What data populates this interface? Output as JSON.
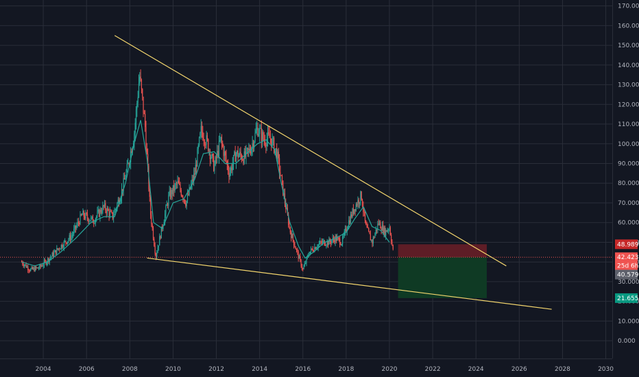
{
  "chart_data": {
    "type": "candlestick",
    "xlim": [
      2002.0,
      2030.3
    ],
    "ylim": [
      -9,
      173
    ],
    "x_ticks": [
      2004,
      2006,
      2008,
      2010,
      2012,
      2014,
      2016,
      2018,
      2020,
      2022,
      2024,
      2026,
      2028,
      2030
    ],
    "x_tick_labels": [
      "2004",
      "2006",
      "2008",
      "2010",
      "2012",
      "2014",
      "2016",
      "2018",
      "2020",
      "2022",
      "2024",
      "2026",
      "2028",
      "2030"
    ],
    "y_ticks": [
      0,
      10,
      20,
      30,
      40,
      50,
      60,
      70,
      80,
      90,
      100,
      110,
      120,
      130,
      140,
      150,
      160,
      170
    ],
    "y_tick_labels": [
      "0.000",
      "10.000",
      "20.000",
      "30.000",
      "40.000",
      "50.000",
      "60.000",
      "70.000",
      "80.000",
      "90.000",
      "100.000",
      "110.000",
      "120.000",
      "130.000",
      "140.000",
      "150.000",
      "160.000",
      "170.000"
    ],
    "grid": true,
    "colors": {
      "background": "#131722",
      "grid": "#2a2e39",
      "up": "#26a69a",
      "down": "#ef5350",
      "moving_average": "#26a69a",
      "trendline": "#f5d76e",
      "current_price_line": "#ef5350",
      "stop_zone": "#5e1d26",
      "target_zone": "#0f3a24"
    },
    "series": [
      {
        "type": "close_path",
        "x": [
          2003.0,
          2003.4,
          2003.8,
          2004.3,
          2004.8,
          2005.3,
          2005.8,
          2006.3,
          2006.8,
          2007.2,
          2007.6,
          2007.9,
          2008.2,
          2008.45,
          2008.7,
          2008.95,
          2009.2,
          2009.5,
          2009.8,
          2010.2,
          2010.6,
          2011.0,
          2011.3,
          2011.6,
          2011.9,
          2012.2,
          2012.6,
          2012.9,
          2013.3,
          2013.6,
          2013.9,
          2014.2,
          2014.5,
          2014.8,
          2015.1,
          2015.4,
          2015.7,
          2016.0,
          2016.3,
          2016.6,
          2016.9,
          2017.2,
          2017.5,
          2017.8,
          2018.1,
          2018.4,
          2018.7,
          2018.9,
          2019.2,
          2019.5,
          2019.8,
          2020.0,
          2020.2
        ],
        "close": [
          40,
          36,
          37,
          42,
          48,
          53,
          64,
          61,
          68,
          63,
          75,
          88,
          105,
          135,
          110,
          65,
          43,
          58,
          73,
          80,
          70,
          85,
          107,
          100,
          88,
          102,
          85,
          95,
          93,
          98,
          108,
          102,
          103,
          95,
          75,
          56,
          46,
          36,
          45,
          48,
          50,
          50,
          52,
          50,
          60,
          68,
          74,
          58,
          50,
          60,
          55,
          58,
          43
        ]
      },
      {
        "type": "moving_average",
        "x": [
          2003.0,
          2003.6,
          2004.2,
          2004.8,
          2005.5,
          2006.2,
          2006.8,
          2007.3,
          2007.8,
          2008.2,
          2008.5,
          2008.8,
          2009.1,
          2009.5,
          2010.0,
          2010.5,
          2011.0,
          2011.4,
          2011.9,
          2012.4,
          2012.9,
          2013.4,
          2013.9,
          2014.3,
          2014.7,
          2015.0,
          2015.4,
          2015.8,
          2016.1,
          2016.5,
          2017.0,
          2017.5,
          2018.0,
          2018.4,
          2018.8,
          2019.2,
          2019.6,
          2020.0
        ],
        "y": [
          40,
          38,
          40,
          45,
          52,
          60,
          63,
          63,
          80,
          100,
          112,
          92,
          60,
          57,
          70,
          72,
          82,
          95,
          96,
          90,
          90,
          95,
          100,
          102,
          97,
          80,
          60,
          48,
          42,
          45,
          50,
          52,
          55,
          62,
          68,
          58,
          56,
          50
        ]
      }
    ],
    "trendlines": [
      {
        "x": [
          2007.3,
          2025.4
        ],
        "y": [
          155,
          38
        ]
      },
      {
        "x": [
          2008.8,
          2027.5
        ],
        "y": [
          42,
          16
        ]
      }
    ],
    "price_line": 42.423,
    "position": {
      "x_start": 2020.4,
      "x_end": 2024.5,
      "stop": 48.989,
      "entry": 42.423,
      "target": 21.655
    },
    "price_labels": [
      {
        "text": "48.989",
        "y": 48.989,
        "color": "#c62828"
      },
      {
        "text": "42.423",
        "y": 42.423,
        "color": "#ef5350"
      },
      {
        "text": "25d 6h",
        "y": 38.2,
        "color": "#ef5350"
      },
      {
        "text": "40.579",
        "y": 33.6,
        "color": "#5d606b"
      },
      {
        "text": "21.655",
        "y": 21.655,
        "color": "#089981"
      }
    ]
  }
}
